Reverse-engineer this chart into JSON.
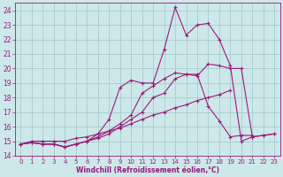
{
  "background_color": "#cce8e8",
  "grid_color": "#aacccc",
  "line_color": "#9b1b7b",
  "xlabel": "Windchill (Refroidissement éolien,°C)",
  "ylim": [
    14,
    24.5
  ],
  "xlim": [
    -0.5,
    23.5
  ],
  "yticks": [
    14,
    15,
    16,
    17,
    18,
    19,
    20,
    21,
    22,
    23,
    24
  ],
  "xticks": [
    0,
    1,
    2,
    3,
    4,
    5,
    6,
    7,
    8,
    9,
    10,
    11,
    12,
    13,
    14,
    15,
    16,
    17,
    18,
    19,
    20,
    21,
    22,
    23
  ],
  "series": [
    {
      "x": [
        0,
        1,
        2,
        3,
        4,
        5,
        6,
        7,
        8,
        9,
        10,
        11,
        12,
        13,
        14,
        15,
        16,
        17,
        18,
        19,
        20,
        21,
        22,
        23
      ],
      "y": [
        14.8,
        14.9,
        14.8,
        14.8,
        14.6,
        14.8,
        15.0,
        15.3,
        15.7,
        16.2,
        16.8,
        18.3,
        18.8,
        19.3,
        19.7,
        19.6,
        19.5,
        20.3,
        20.2,
        20.0,
        20.0,
        15.3,
        15.4,
        15.5
      ]
    },
    {
      "x": [
        0,
        1,
        2,
        3,
        4,
        5,
        6,
        7,
        8,
        9,
        10,
        11,
        12,
        13,
        14,
        15,
        16,
        17,
        18,
        19,
        20,
        21,
        22,
        23
      ],
      "y": [
        14.8,
        14.9,
        14.8,
        14.8,
        14.6,
        14.8,
        15.0,
        15.5,
        16.5,
        18.7,
        19.2,
        19.0,
        19.0,
        21.3,
        24.2,
        22.3,
        23.0,
        23.1,
        22.0,
        20.2,
        15.0,
        15.3,
        15.4,
        15.5
      ]
    },
    {
      "x": [
        0,
        1,
        2,
        3,
        4,
        5,
        6,
        7,
        8,
        9,
        10,
        11,
        12,
        13,
        14,
        15,
        16,
        17,
        18,
        19,
        20,
        21
      ],
      "y": [
        14.8,
        14.9,
        14.8,
        14.8,
        14.6,
        14.8,
        15.0,
        15.2,
        15.5,
        16.0,
        16.5,
        17.0,
        18.0,
        18.3,
        19.3,
        19.6,
        19.6,
        17.4,
        16.4,
        15.3,
        15.4,
        15.4
      ]
    },
    {
      "x": [
        0,
        1,
        2,
        3,
        4,
        5,
        6,
        7,
        8,
        9,
        10,
        11,
        12,
        13,
        14,
        15,
        16,
        17,
        18,
        19
      ],
      "y": [
        14.8,
        15.0,
        15.0,
        15.0,
        15.0,
        15.2,
        15.3,
        15.5,
        15.7,
        15.9,
        16.2,
        16.5,
        16.8,
        17.0,
        17.3,
        17.5,
        17.8,
        18.0,
        18.2,
        18.5
      ]
    }
  ]
}
